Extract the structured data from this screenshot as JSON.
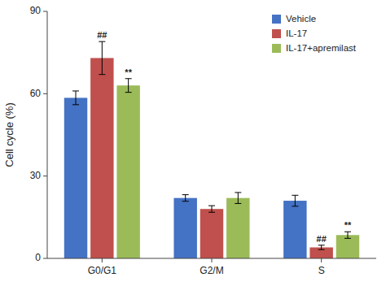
{
  "chart_data": {
    "type": "bar",
    "categories": [
      "G0/G1",
      "G2/M",
      "S"
    ],
    "series": [
      {
        "name": "Vehicle",
        "color": "#4472c4",
        "values": [
          58.5,
          22.0,
          21.0
        ],
        "errors": [
          2.5,
          1.2,
          2.0
        ]
      },
      {
        "name": "IL-17",
        "color": "#c0504d",
        "values": [
          73.0,
          18.0,
          4.0
        ],
        "errors": [
          6.0,
          1.2,
          0.8
        ]
      },
      {
        "name": "IL-17+apremilast",
        "color": "#9bbb59",
        "values": [
          63.0,
          22.0,
          8.5
        ],
        "errors": [
          2.5,
          2.0,
          1.2
        ]
      }
    ],
    "ylabel": "Cell cycle (%)",
    "ylim": [
      0,
      90
    ],
    "yticks": [
      0,
      30,
      60,
      90
    ],
    "annotations": [
      {
        "text": "##",
        "category": "G0/G1",
        "series": "IL-17"
      },
      {
        "text": "**",
        "category": "G0/G1",
        "series": "IL-17+apremilast"
      },
      {
        "text": "##",
        "category": "S",
        "series": "IL-17"
      },
      {
        "text": "**",
        "category": "S",
        "series": "IL-17+apremilast"
      }
    ],
    "grid": false,
    "legend": "upper right"
  }
}
